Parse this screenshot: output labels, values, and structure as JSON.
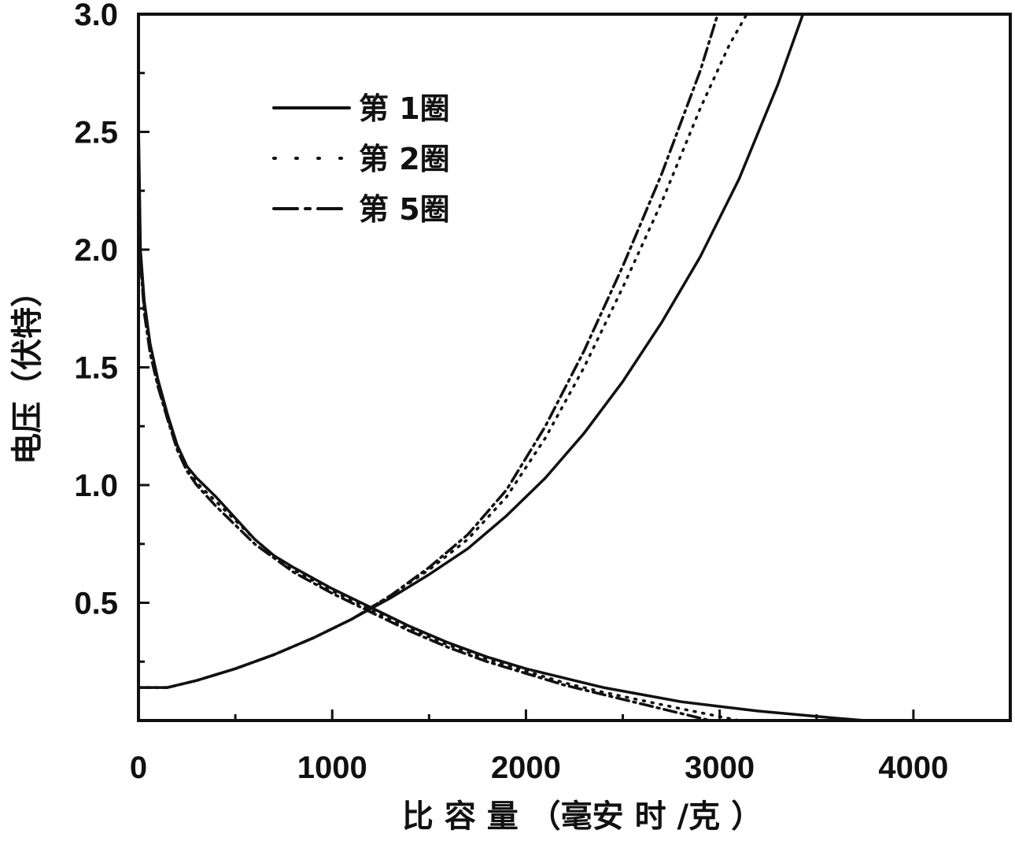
{
  "chart_data": {
    "type": "line",
    "title": "",
    "xlabel": "比 容 量 （毫安 时 /克 ）",
    "ylabel": "电压（伏特）",
    "xlim": [
      0,
      4500
    ],
    "ylim": [
      0,
      3.0
    ],
    "x_ticks": [
      0,
      1000,
      2000,
      3000,
      4000
    ],
    "x_tick_labels": [
      "0",
      "1000",
      "2000",
      "3000",
      "4000"
    ],
    "y_ticks": [
      0.5,
      1.0,
      1.5,
      2.0,
      2.5,
      3.0
    ],
    "y_tick_labels": [
      "0.5",
      "1.0",
      "1.5",
      "2.0",
      "2.5",
      "3.0"
    ],
    "grid": false,
    "legend_position": "top-left",
    "color": "#111111",
    "series": [
      {
        "name": "第 1圈",
        "dash": "solid",
        "discharge": {
          "x": [
            0,
            10,
            30,
            60,
            100,
            150,
            200,
            250,
            300,
            400,
            500,
            600,
            700,
            800,
            1000,
            1200,
            1400,
            1600,
            1800,
            2000,
            2200,
            2400,
            2600,
            2800,
            3000,
            3200,
            3400,
            3600,
            3750
          ],
          "y": [
            2.55,
            2.0,
            1.78,
            1.6,
            1.45,
            1.3,
            1.17,
            1.08,
            1.03,
            0.95,
            0.86,
            0.77,
            0.7,
            0.65,
            0.56,
            0.48,
            0.4,
            0.33,
            0.27,
            0.22,
            0.18,
            0.14,
            0.11,
            0.08,
            0.06,
            0.04,
            0.025,
            0.01,
            0.0
          ]
        },
        "charge": {
          "x": [
            0,
            150,
            300,
            500,
            700,
            900,
            1100,
            1300,
            1500,
            1700,
            1900,
            2100,
            2300,
            2500,
            2700,
            2900,
            3100,
            3300,
            3430
          ],
          "y": [
            0.14,
            0.14,
            0.17,
            0.22,
            0.28,
            0.35,
            0.43,
            0.52,
            0.62,
            0.73,
            0.87,
            1.03,
            1.22,
            1.44,
            1.69,
            1.97,
            2.3,
            2.7,
            3.0
          ]
        }
      },
      {
        "name": "第 2圈",
        "dash": "dotted",
        "discharge": {
          "x": [
            0,
            10,
            30,
            60,
            100,
            150,
            200,
            250,
            300,
            400,
            500,
            600,
            700,
            800,
            1000,
            1200,
            1400,
            1600,
            1800,
            2000,
            2200,
            2400,
            2600,
            2800,
            2950,
            3100
          ],
          "y": [
            2.5,
            1.98,
            1.75,
            1.58,
            1.43,
            1.29,
            1.16,
            1.07,
            1.01,
            0.93,
            0.85,
            0.77,
            0.7,
            0.64,
            0.55,
            0.47,
            0.39,
            0.32,
            0.26,
            0.21,
            0.16,
            0.12,
            0.085,
            0.05,
            0.025,
            0.0
          ]
        },
        "charge": {
          "x": [
            0,
            150,
            300,
            500,
            700,
            900,
            1100,
            1300,
            1500,
            1700,
            1900,
            2100,
            2300,
            2500,
            2700,
            2900,
            3050,
            3140
          ],
          "y": [
            0.14,
            0.14,
            0.17,
            0.22,
            0.28,
            0.35,
            0.43,
            0.53,
            0.64,
            0.77,
            0.95,
            1.2,
            1.5,
            1.84,
            2.2,
            2.6,
            2.87,
            3.0
          ]
        }
      },
      {
        "name": "第 5圈",
        "dash": "dash-dot",
        "discharge": {
          "x": [
            0,
            10,
            30,
            60,
            100,
            150,
            200,
            250,
            300,
            400,
            500,
            600,
            700,
            800,
            1000,
            1200,
            1400,
            1600,
            1800,
            2000,
            2200,
            2400,
            2600,
            2800,
            2950
          ],
          "y": [
            2.45,
            1.95,
            1.73,
            1.56,
            1.42,
            1.28,
            1.15,
            1.06,
            1.0,
            0.91,
            0.83,
            0.75,
            0.69,
            0.63,
            0.54,
            0.46,
            0.38,
            0.31,
            0.25,
            0.2,
            0.15,
            0.11,
            0.07,
            0.03,
            0.0
          ]
        },
        "charge": {
          "x": [
            0,
            150,
            300,
            500,
            700,
            900,
            1100,
            1300,
            1500,
            1700,
            1900,
            2100,
            2300,
            2500,
            2700,
            2900,
            2990
          ],
          "y": [
            0.14,
            0.14,
            0.17,
            0.22,
            0.28,
            0.35,
            0.43,
            0.53,
            0.65,
            0.79,
            0.98,
            1.25,
            1.57,
            1.93,
            2.32,
            2.76,
            3.0
          ]
        }
      }
    ]
  }
}
